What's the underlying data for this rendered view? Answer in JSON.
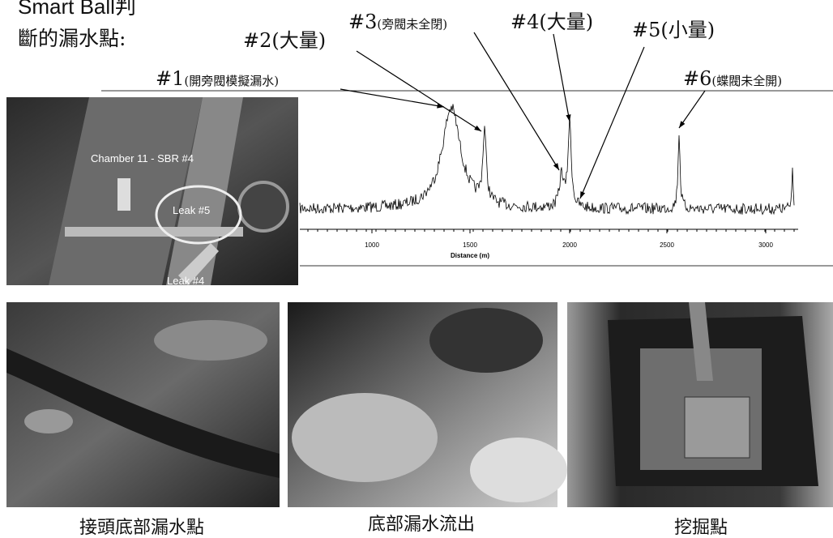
{
  "title": {
    "line1": "Smart Ball判",
    "line2": "斷的漏水點:"
  },
  "leaks": [
    {
      "id": "#1",
      "note": "(開旁閥模擬漏水)"
    },
    {
      "id": "#2",
      "note": "(大量)"
    },
    {
      "id": "#3",
      "note": "(旁閥未全閉)"
    },
    {
      "id": "#4",
      "note": "(大量)"
    },
    {
      "id": "#5",
      "note": "(小量)"
    },
    {
      "id": "#6",
      "note": "(蝶閥未全開)"
    }
  ],
  "map_photo": {
    "labels": [
      "Chamber 11 - SBR #4",
      "Leak #5",
      "Leak #4"
    ]
  },
  "chart": {
    "x_label": "Distance (m)",
    "xticks": [
      1000,
      1500,
      2000,
      2500,
      3000
    ]
  },
  "photos": [
    {
      "caption": "接頭底部漏水點"
    },
    {
      "caption": "底部漏水流出"
    },
    {
      "caption": "挖掘點"
    }
  ]
}
